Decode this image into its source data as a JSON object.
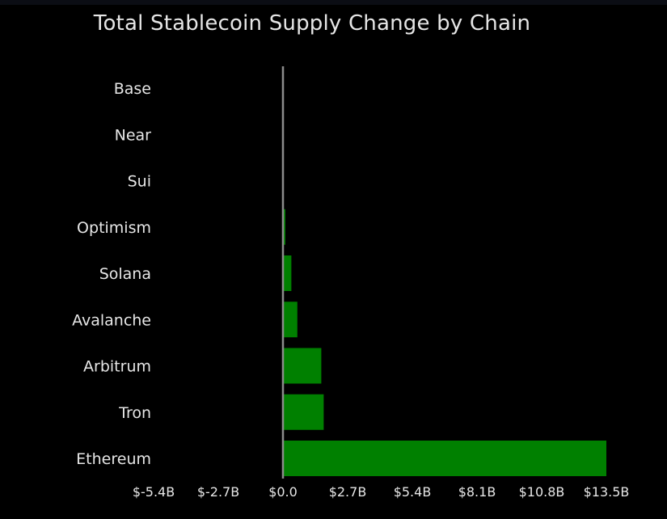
{
  "chart_data": {
    "type": "bar",
    "orientation": "horizontal",
    "title": "Total Stablecoin Supply Change by Chain",
    "xlabel": "",
    "ylabel": "",
    "categories": [
      "Base",
      "Near",
      "Sui",
      "Optimism",
      "Solana",
      "Avalanche",
      "Arbitrum",
      "Tron",
      "Ethereum"
    ],
    "values": [
      0.0,
      0.0,
      0.0,
      0.1,
      0.35,
      0.6,
      1.6,
      1.7,
      13.5
    ],
    "unit": "B USD",
    "xlim": [
      -5.4,
      13.5
    ],
    "x_ticks": [
      -5.4,
      -2.7,
      0.0,
      2.7,
      5.4,
      8.1,
      10.8,
      13.5
    ],
    "x_tick_labels": [
      "$-5.4B",
      "$-2.7B",
      "$0.0",
      "$2.7B",
      "$5.4B",
      "$8.1B",
      "$10.8B",
      "$13.5B"
    ],
    "grid": false,
    "legend": "none",
    "colors": {
      "bar": "#008000",
      "zero_line": "#8c8c8c",
      "text": "#e6e6e6",
      "background": "#000000"
    }
  }
}
